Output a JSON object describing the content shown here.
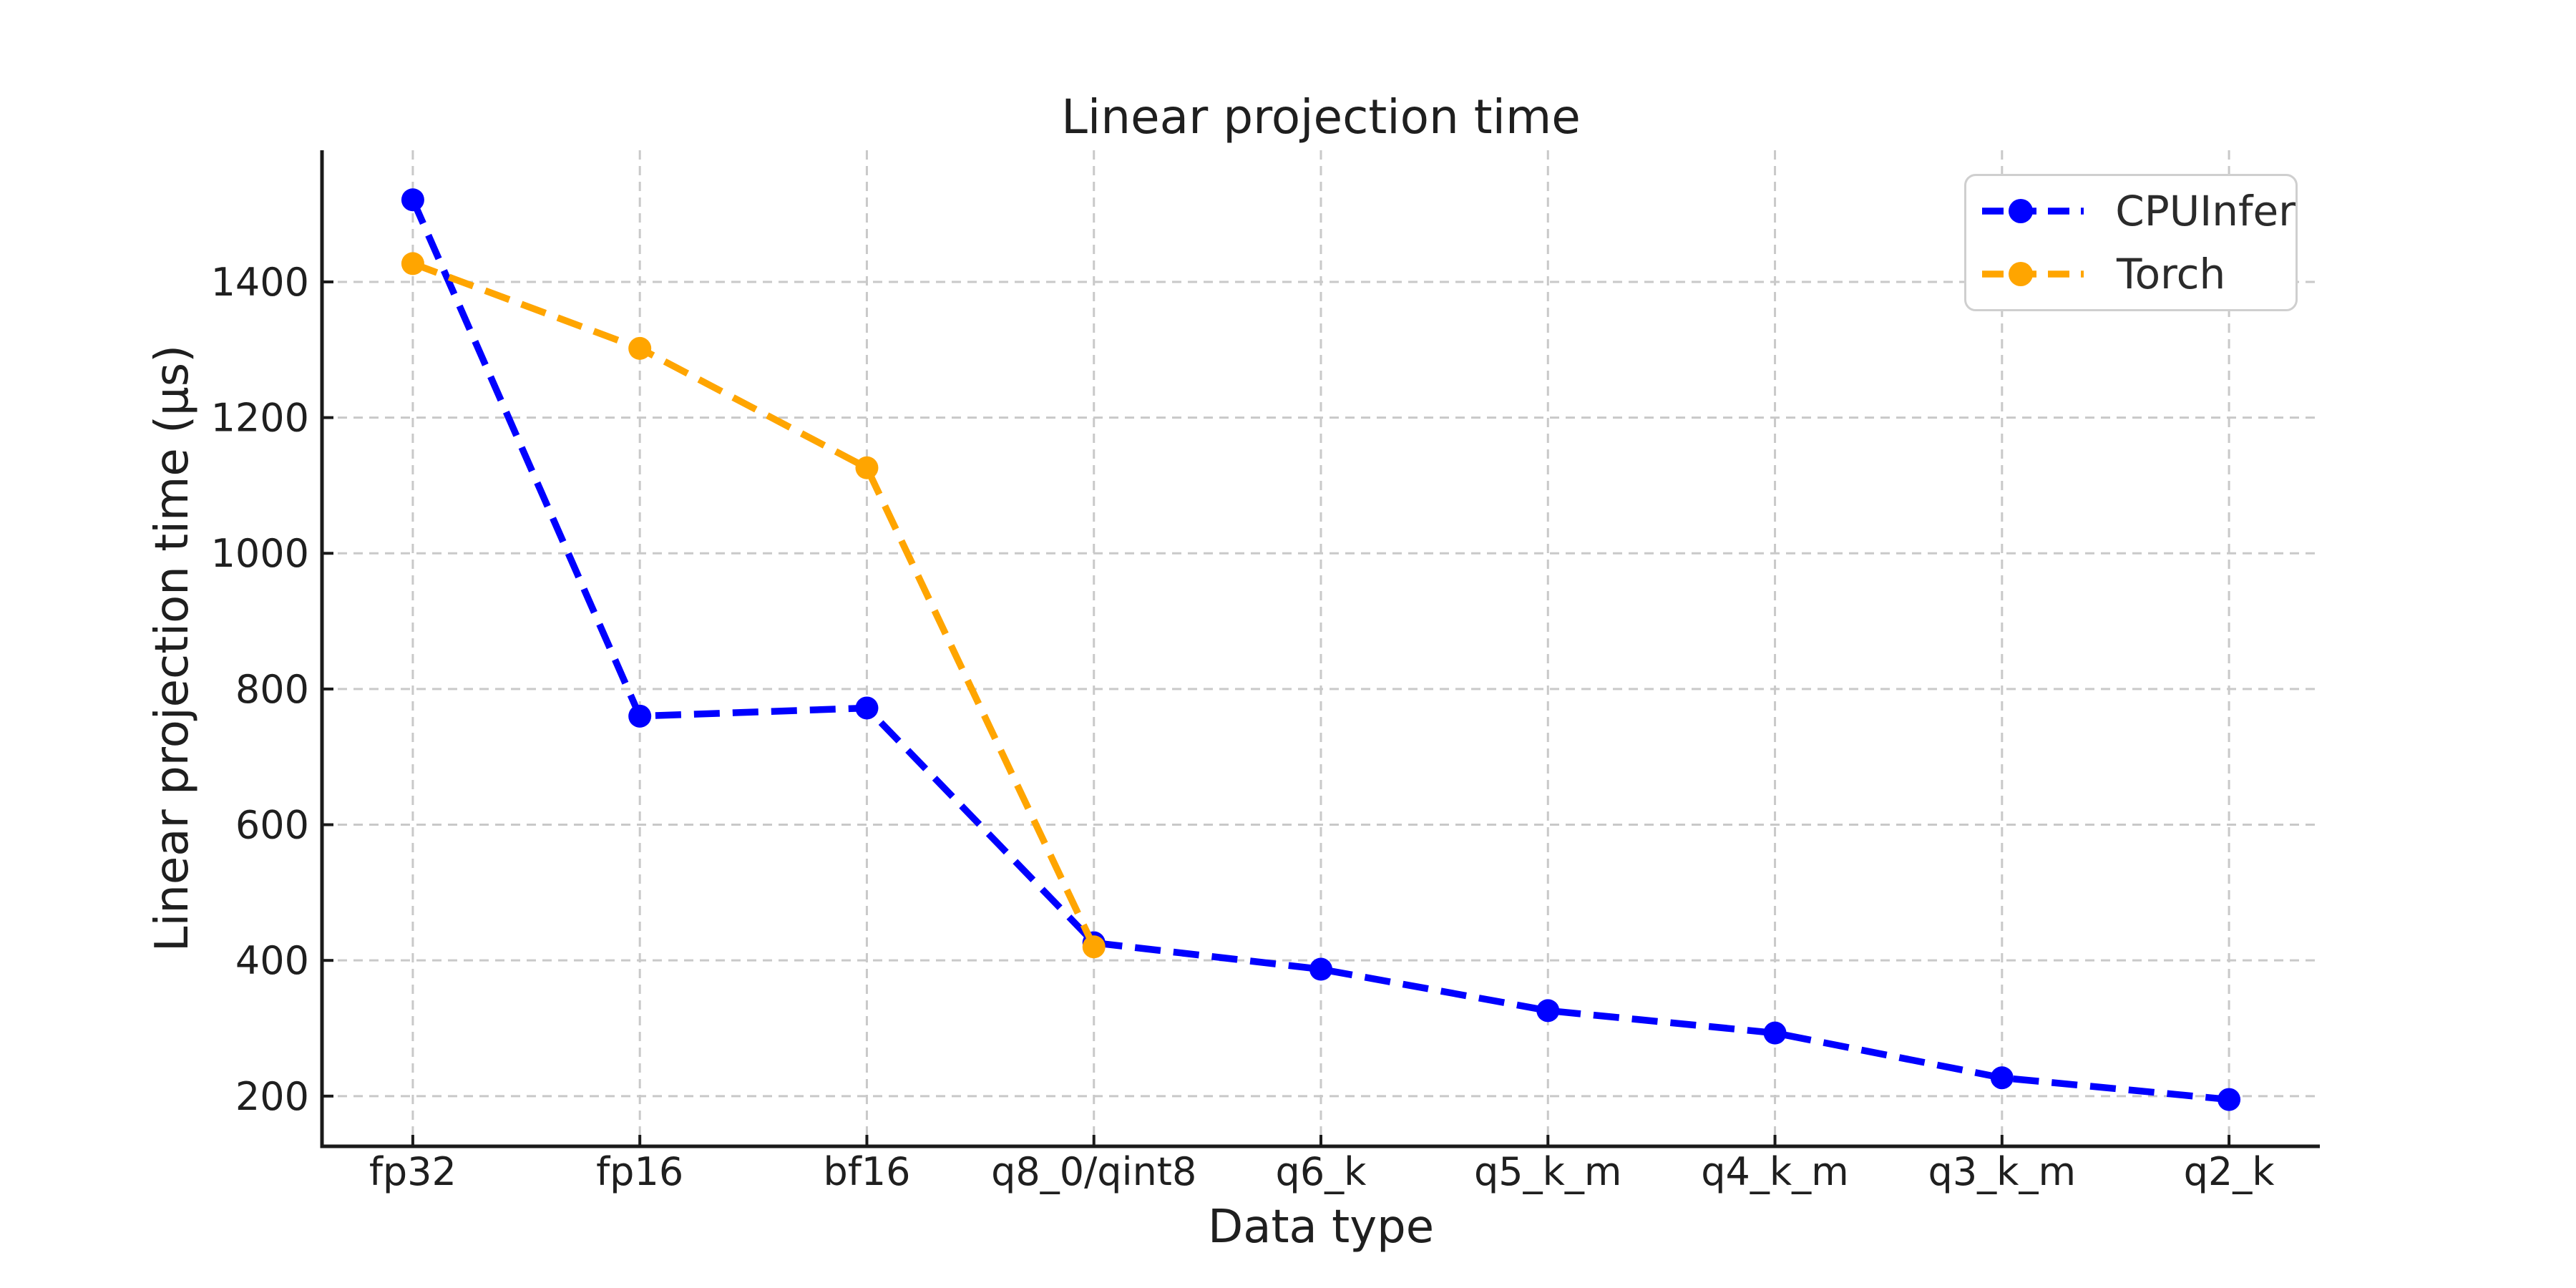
{
  "figure": {
    "title": "Linear projection time",
    "xlabel": "Data type",
    "ylabel": "Linear projection time (μs)"
  },
  "chart_data": {
    "type": "line",
    "title": "Linear projection time",
    "xlabel": "Data type",
    "ylabel": "Linear projection time (μs)",
    "categories": [
      "fp32",
      "fp16",
      "bf16",
      "q8_0/qint8",
      "q6_k",
      "q5_k_m",
      "q4_k_m",
      "q3_k_m",
      "q2_k"
    ],
    "series": [
      {
        "name": "CPUInfer",
        "color": "#0000ff",
        "marker": "circle",
        "linestyle": "dashed",
        "values": [
          1521,
          760,
          772,
          426,
          387,
          326,
          293,
          227,
          195
        ]
      },
      {
        "name": "Torch",
        "color": "#ffa500",
        "marker": "circle",
        "linestyle": "dashed",
        "values": [
          1427,
          1302,
          1126,
          420,
          null,
          null,
          null,
          null,
          null
        ]
      }
    ],
    "yticks": [
      200,
      400,
      600,
      800,
      1000,
      1200,
      1400
    ],
    "ylim": [
      126,
      1594
    ],
    "grid": true,
    "grid_style": "dashed",
    "legend_position": "upper right",
    "legend_items": [
      "CPUInfer",
      "Torch"
    ]
  },
  "colors": {
    "cpuinfer": "#0000ff",
    "torch": "#ffa500",
    "grid": "#c9c9c9",
    "spine": "#1a1a1a",
    "text": "#1f1f1f",
    "legend_border": "#cfcfcf",
    "background": "#ffffff"
  }
}
